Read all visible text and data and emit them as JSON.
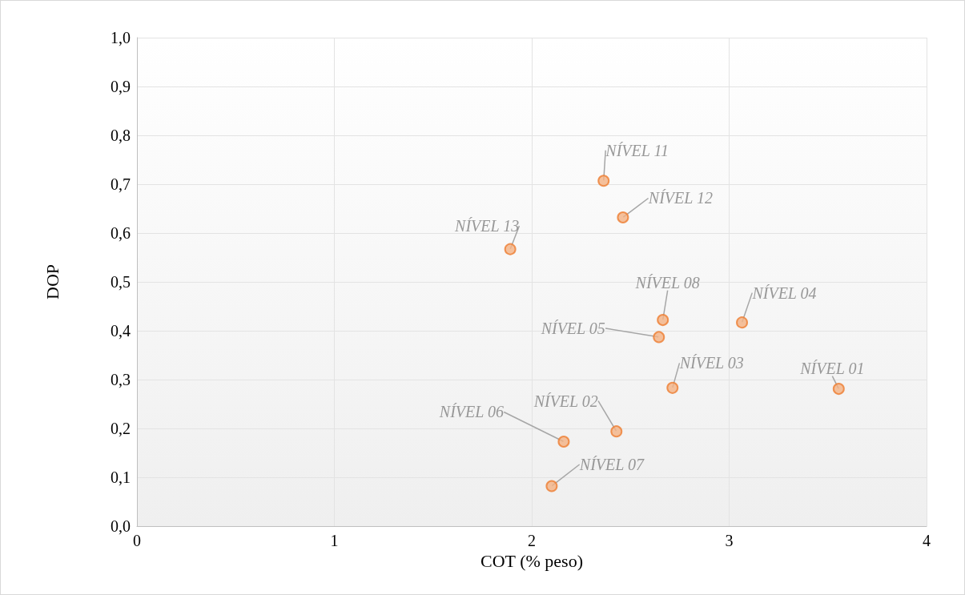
{
  "chart_data": {
    "type": "scatter",
    "xlabel": "COT (% peso)",
    "ylabel": "DOP",
    "x": [
      3.555,
      2.429,
      2.713,
      3.065,
      2.644,
      2.162,
      2.101,
      2.664,
      2.364,
      2.462,
      1.891
    ],
    "series": [
      {
        "color": "#ed7d31",
        "values": [
          0.281,
          0.194,
          0.283,
          0.417,
          0.387,
          0.173,
          0.082,
          0.422,
          0.707,
          0.632,
          0.567
        ]
      }
    ],
    "xlim": [
      0,
      4
    ],
    "xticks": [
      0,
      1,
      2,
      3,
      4
    ],
    "ylim": [
      0,
      1
    ],
    "yticks": [
      {
        "value": 0,
        "label": "0,0"
      },
      {
        "value": 0.1,
        "label": "0,1"
      },
      {
        "value": 0.2,
        "label": "0,2"
      },
      {
        "value": 0.3,
        "label": "0,3"
      },
      {
        "value": 0.4,
        "label": "0,4"
      },
      {
        "value": 0.5,
        "label": "0,5"
      },
      {
        "value": 0.6,
        "label": "0,6"
      },
      {
        "value": 0.7,
        "label": "0,7"
      },
      {
        "value": 0.8,
        "label": "0,8"
      },
      {
        "value": 0.9,
        "label": "0,9"
      },
      {
        "value": 1,
        "label": "1,0"
      }
    ],
    "grid": true,
    "marker": "circle",
    "annotations": [
      {
        "text": "NÍVEL 01",
        "x": 3.555,
        "y": 0.281
      },
      {
        "text": "NÍVEL 02",
        "x": 2.429,
        "y": 0.194
      },
      {
        "text": "NÍVEL 03",
        "x": 2.713,
        "y": 0.283
      },
      {
        "text": "NÍVEL 04",
        "x": 3.065,
        "y": 0.417
      },
      {
        "text": "NÍVEL 05",
        "x": 2.644,
        "y": 0.387
      },
      {
        "text": "NÍVEL 06",
        "x": 2.162,
        "y": 0.173
      },
      {
        "text": "NÍVEL 07",
        "x": 2.101,
        "y": 0.082
      },
      {
        "text": "NÍVEL 08",
        "x": 2.664,
        "y": 0.422
      },
      {
        "text": "NÍVEL 11",
        "x": 2.364,
        "y": 0.707
      },
      {
        "text": "NÍVEL 12",
        "x": 2.462,
        "y": 0.632
      },
      {
        "text": "NÍVEL 13",
        "x": 1.891,
        "y": 0.567
      }
    ]
  }
}
